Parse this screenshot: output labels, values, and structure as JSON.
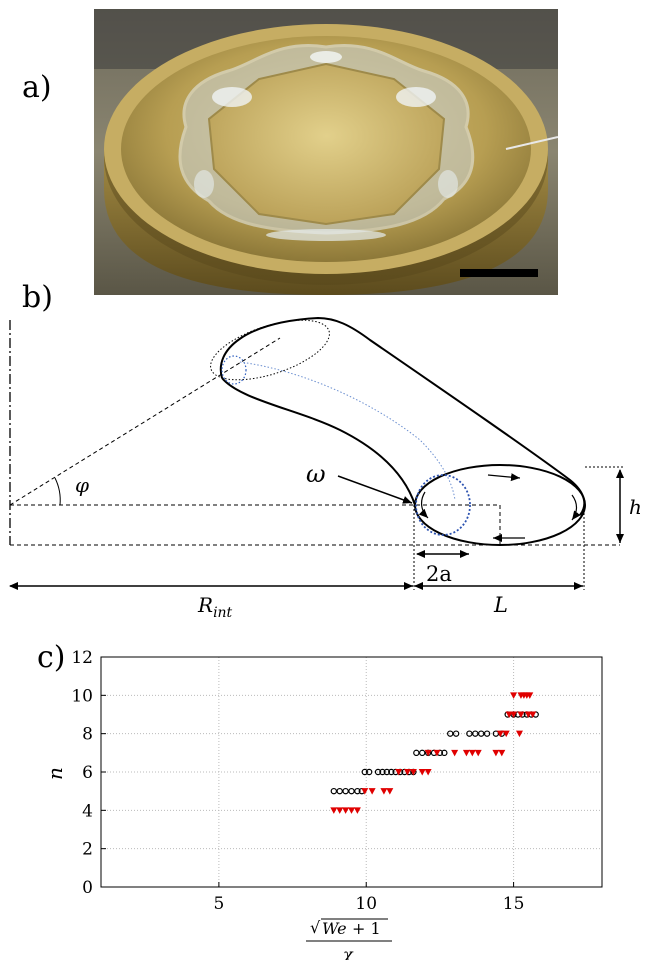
{
  "panels": {
    "a": {
      "label": "a)"
    },
    "b": {
      "label": "b)"
    },
    "c": {
      "label": "c)"
    }
  },
  "schematic": {
    "phi": "φ",
    "omega": "ω",
    "h": "h",
    "two_a": "2a",
    "r_int": "R",
    "r_int_sub": "int",
    "L": "L"
  },
  "chart_data": {
    "type": "scatter",
    "title": "",
    "xlabel": "√(We+1) / χ",
    "ylabel": "n",
    "xlim": [
      1,
      18
    ],
    "ylim": [
      0,
      12
    ],
    "xticks": [
      5,
      10,
      15
    ],
    "yticks": [
      0,
      2,
      4,
      6,
      8,
      10,
      12
    ],
    "grid": true,
    "colors": {
      "circles": "#000000",
      "triangles": "#e00000"
    },
    "series": [
      {
        "marker": "circle",
        "points": [
          [
            8.9,
            5
          ],
          [
            9.1,
            5
          ],
          [
            9.3,
            5
          ],
          [
            9.5,
            5
          ],
          [
            9.7,
            5
          ],
          [
            9.85,
            5
          ],
          [
            9.95,
            6
          ],
          [
            10.1,
            6
          ],
          [
            10.4,
            6
          ],
          [
            10.55,
            6
          ],
          [
            10.7,
            6
          ],
          [
            10.85,
            6
          ],
          [
            11.0,
            6
          ],
          [
            11.15,
            6
          ],
          [
            11.3,
            6
          ],
          [
            11.45,
            6
          ],
          [
            11.6,
            6
          ],
          [
            11.7,
            7
          ],
          [
            11.9,
            7
          ],
          [
            12.1,
            7
          ],
          [
            12.3,
            7
          ],
          [
            12.5,
            7
          ],
          [
            12.65,
            7
          ],
          [
            12.85,
            8
          ],
          [
            13.05,
            8
          ],
          [
            13.5,
            8
          ],
          [
            13.7,
            8
          ],
          [
            13.9,
            8
          ],
          [
            14.1,
            8
          ],
          [
            14.4,
            8
          ],
          [
            14.6,
            8
          ],
          [
            14.8,
            9
          ],
          [
            15.0,
            9
          ],
          [
            15.15,
            9
          ],
          [
            15.3,
            9
          ],
          [
            15.45,
            9
          ],
          [
            15.6,
            9
          ],
          [
            15.75,
            9
          ]
        ]
      },
      {
        "marker": "triangle",
        "points": [
          [
            8.9,
            4
          ],
          [
            9.1,
            4
          ],
          [
            9.3,
            4
          ],
          [
            9.5,
            4
          ],
          [
            9.7,
            4
          ],
          [
            9.95,
            5
          ],
          [
            10.2,
            5
          ],
          [
            10.6,
            5
          ],
          [
            10.8,
            5
          ],
          [
            11.1,
            6
          ],
          [
            11.4,
            6
          ],
          [
            11.6,
            6
          ],
          [
            11.9,
            6
          ],
          [
            12.1,
            6
          ],
          [
            12.1,
            7
          ],
          [
            12.4,
            7
          ],
          [
            13.0,
            7
          ],
          [
            13.4,
            7
          ],
          [
            13.6,
            7
          ],
          [
            13.8,
            7
          ],
          [
            14.4,
            7
          ],
          [
            14.6,
            7
          ],
          [
            14.55,
            8
          ],
          [
            14.75,
            8
          ],
          [
            14.85,
            9
          ],
          [
            15.0,
            9
          ],
          [
            15.25,
            9
          ],
          [
            15.5,
            9
          ],
          [
            15.65,
            9
          ],
          [
            15.0,
            10
          ],
          [
            15.25,
            10
          ],
          [
            15.35,
            10
          ],
          [
            15.45,
            10
          ],
          [
            15.55,
            10
          ],
          [
            15.2,
            8
          ]
        ]
      }
    ]
  }
}
